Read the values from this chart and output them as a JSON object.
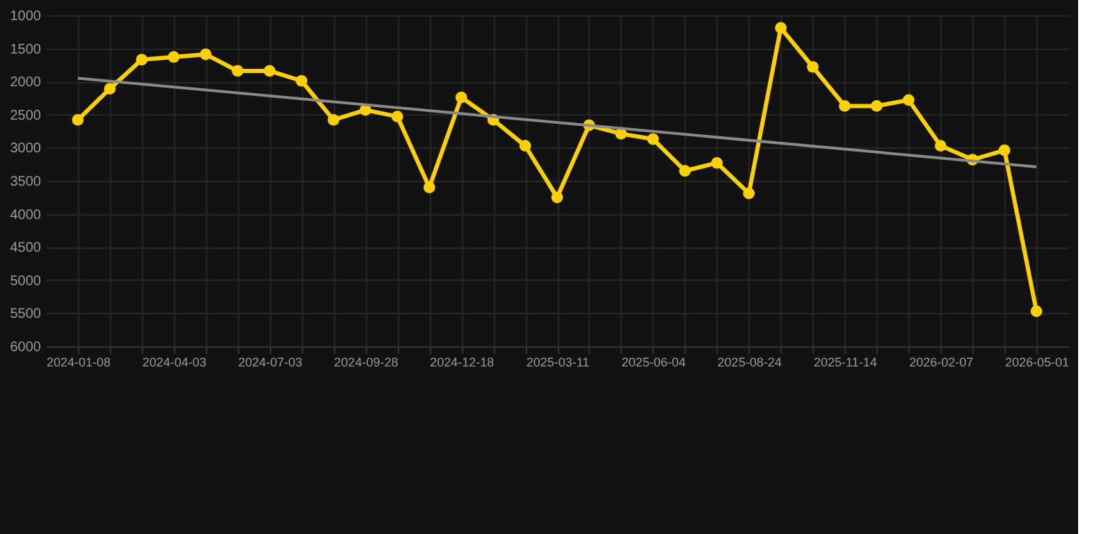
{
  "chart_data": {
    "type": "line",
    "categories": [
      "2024-01-08",
      null,
      null,
      "2024-04-03",
      null,
      null,
      "2024-07-03",
      null,
      null,
      "2024-09-28",
      null,
      null,
      "2024-12-18",
      null,
      null,
      "2025-03-11",
      null,
      null,
      "2025-06-04",
      null,
      null,
      "2025-08-24",
      null,
      null,
      "2025-11-14",
      null,
      null,
      "2026-02-07",
      null,
      null,
      "2026-05-01"
    ],
    "series": [
      {
        "color": "#ffd000",
        "marker": "circle",
        "values": [
          2580,
          2110,
          1670,
          1630,
          1590,
          1840,
          1840,
          1990,
          2580,
          2430,
          2530,
          3600,
          2240,
          2580,
          2970,
          3750,
          2660,
          2790,
          2870,
          3350,
          3230,
          3690,
          1190,
          1780,
          2370,
          2370,
          2280,
          2970,
          3180,
          3040,
          5470
        ]
      },
      {
        "color": "#8a8a8a",
        "marker": "none",
        "values": [
          1950,
          null,
          null,
          null,
          null,
          null,
          null,
          null,
          null,
          null,
          null,
          null,
          null,
          null,
          null,
          null,
          null,
          null,
          null,
          null,
          null,
          null,
          null,
          null,
          null,
          null,
          null,
          null,
          null,
          null,
          3290
        ]
      }
    ],
    "ylim": [
      6000,
      1000
    ],
    "yticks": [
      1000,
      1500,
      2000,
      2500,
      3000,
      3500,
      4000,
      4500,
      5000,
      5500,
      6000
    ],
    "grid": true
  }
}
